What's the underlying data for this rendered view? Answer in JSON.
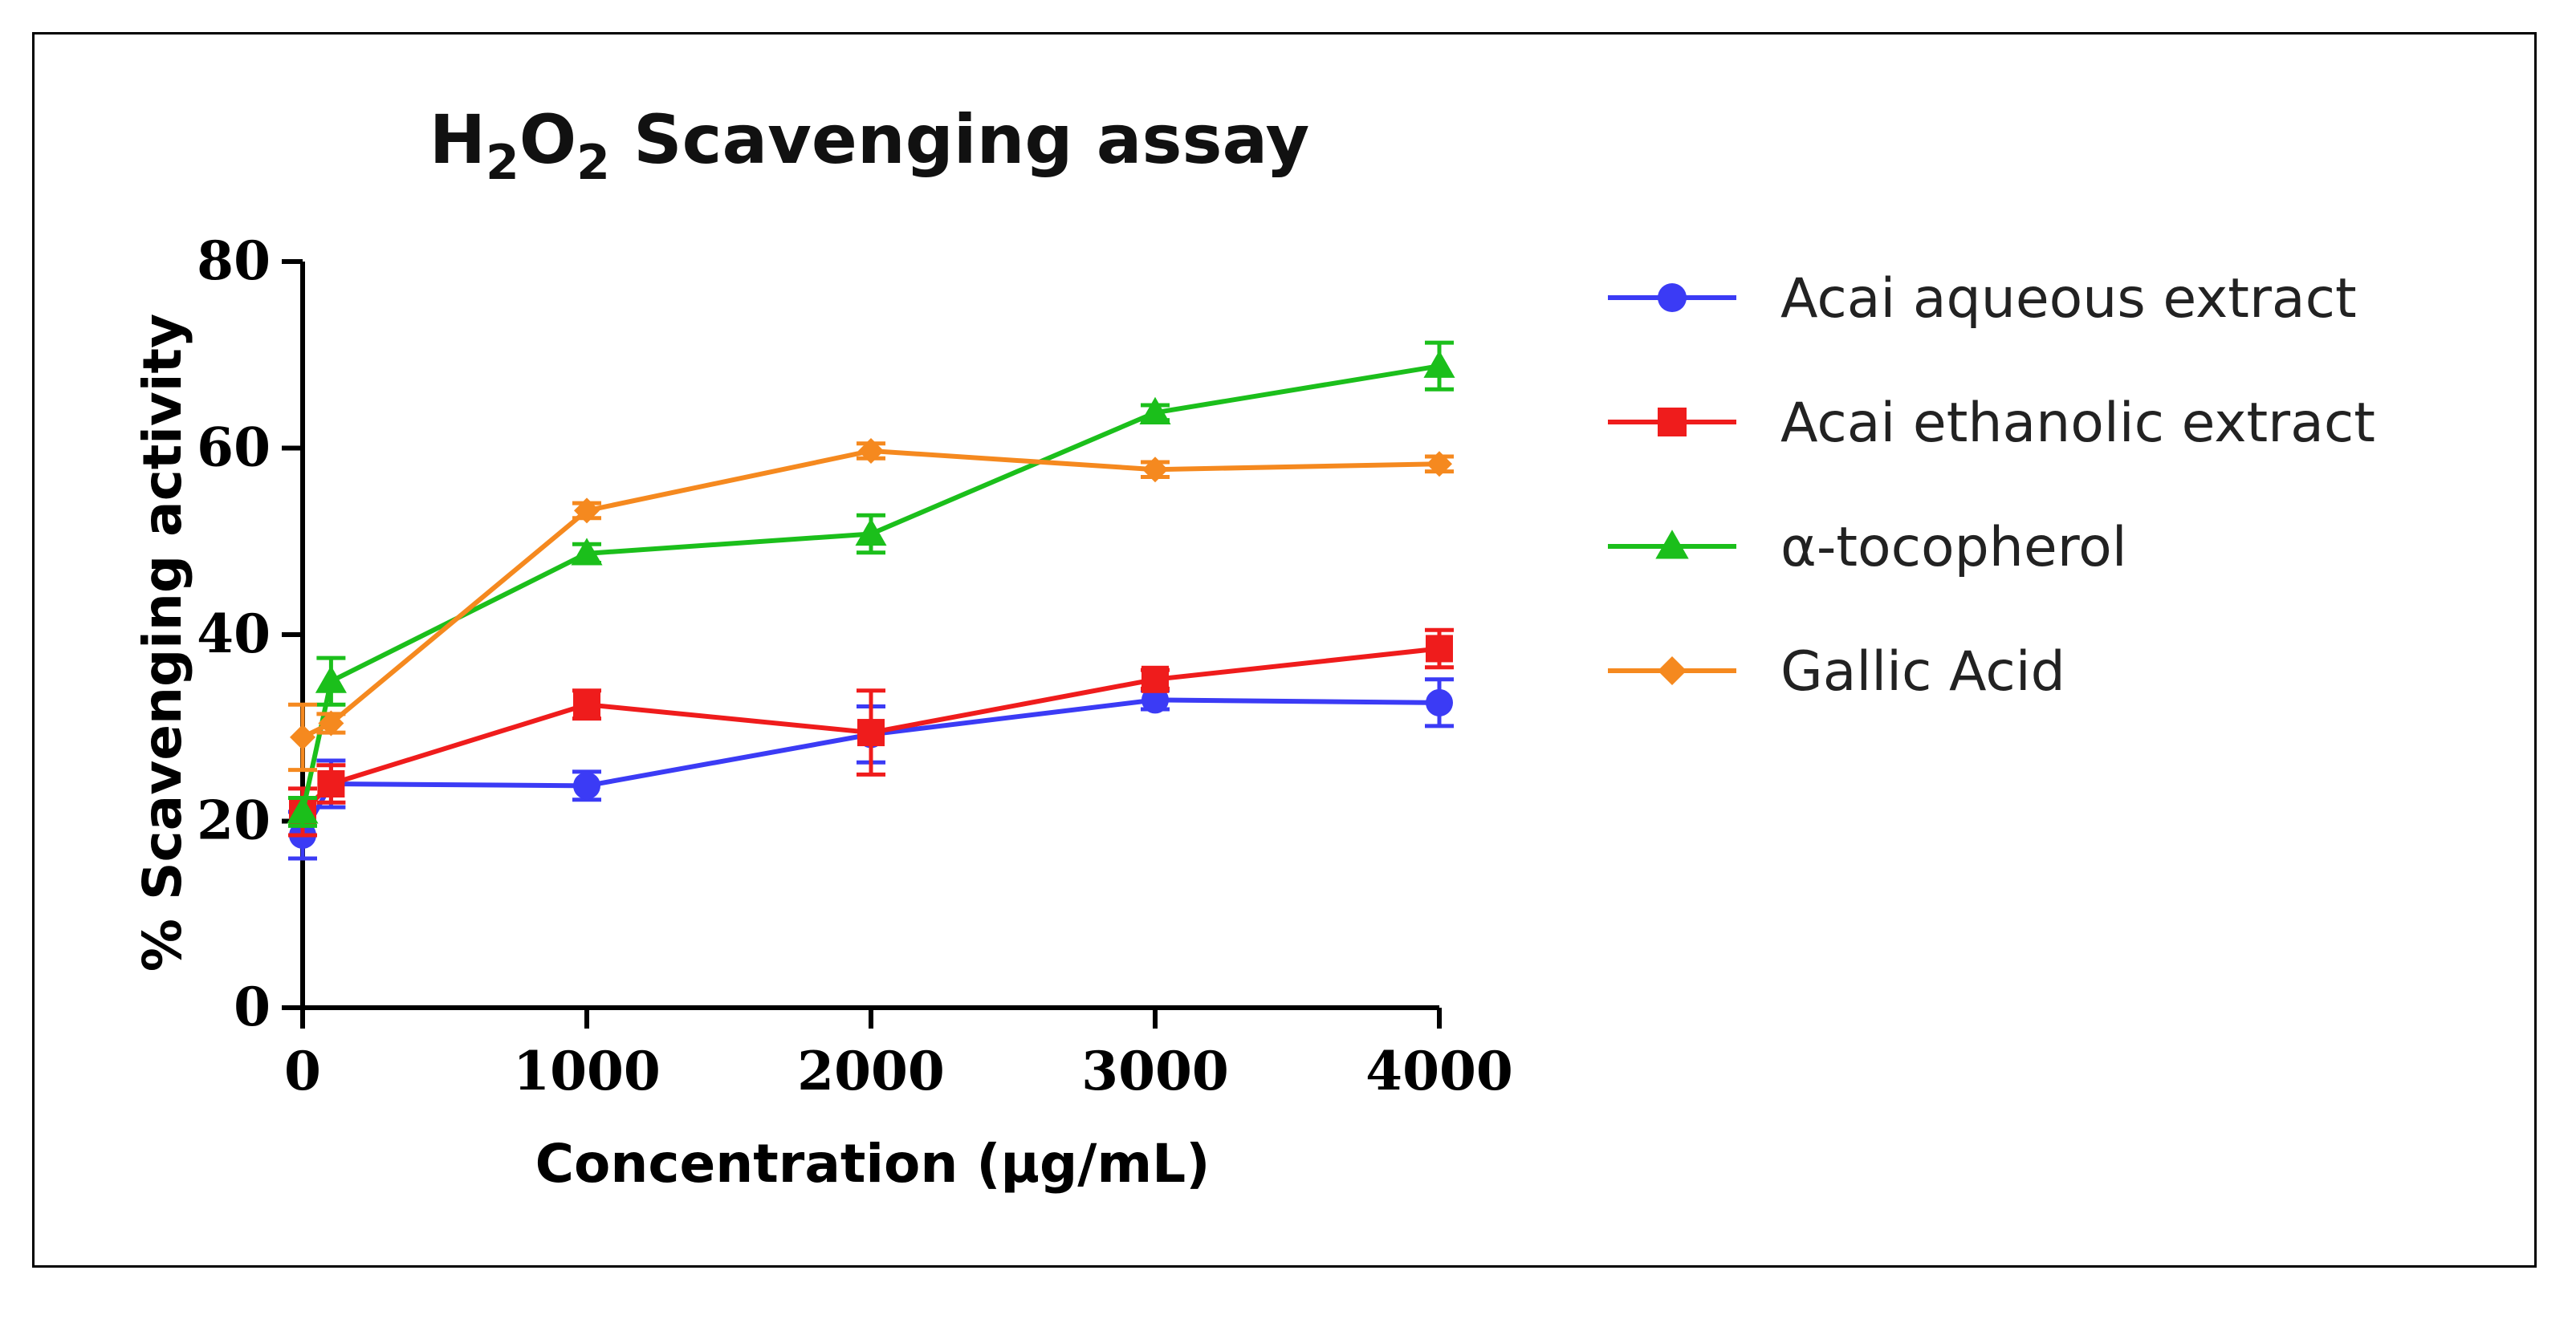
{
  "chart_data": {
    "type": "line",
    "title": "H2O2 Scavenging assay",
    "title_parts": {
      "base1": "H",
      "sub1": "2",
      "base2": "O",
      "sub2": "2",
      "rest": " Scavenging assay"
    },
    "xlabel": "Concentration (μg/mL)",
    "ylabel": "% Scavenging activity",
    "xlim": [
      0,
      4000
    ],
    "ylim": [
      0,
      80
    ],
    "xticks": [
      0,
      1000,
      2000,
      3000,
      4000
    ],
    "yticks": [
      0,
      20,
      40,
      60,
      80
    ],
    "grid": false,
    "legend_position": "right",
    "series": [
      {
        "name": "Acai aqueous extract",
        "color": "#3b3bf5",
        "marker": "circle",
        "x": [
          0,
          100,
          1000,
          2000,
          3000,
          4000
        ],
        "y": [
          18.5,
          24.0,
          23.8,
          29.3,
          33.0,
          32.7
        ],
        "err": [
          2.5,
          2.5,
          1.5,
          3.0,
          1.0,
          2.5
        ]
      },
      {
        "name": "Acai ethanolic extract",
        "color": "#ef1c1c",
        "marker": "square",
        "x": [
          0,
          100,
          1000,
          2000,
          3000,
          4000
        ],
        "y": [
          21.0,
          24.0,
          32.5,
          29.5,
          35.2,
          38.5
        ],
        "err": [
          2.5,
          2.0,
          1.5,
          4.5,
          1.0,
          2.0
        ]
      },
      {
        "name": "α-tocopherol",
        "color": "#1bbf1b",
        "marker": "triangle",
        "x": [
          0,
          100,
          1000,
          2000,
          3000,
          4000
        ],
        "y": [
          21.0,
          35.0,
          48.7,
          50.8,
          63.8,
          68.8
        ],
        "err": [
          1.5,
          2.5,
          1.0,
          2.0,
          0.8,
          2.5
        ]
      },
      {
        "name": "Gallic Acid",
        "color": "#f5891f",
        "marker": "diamond",
        "x": [
          0,
          100,
          1000,
          2000,
          3000,
          4000
        ],
        "y": [
          29.0,
          30.5,
          53.3,
          59.7,
          57.7,
          58.3
        ],
        "err": [
          3.5,
          1.0,
          0.8,
          0.8,
          0.8,
          0.8
        ]
      }
    ]
  }
}
